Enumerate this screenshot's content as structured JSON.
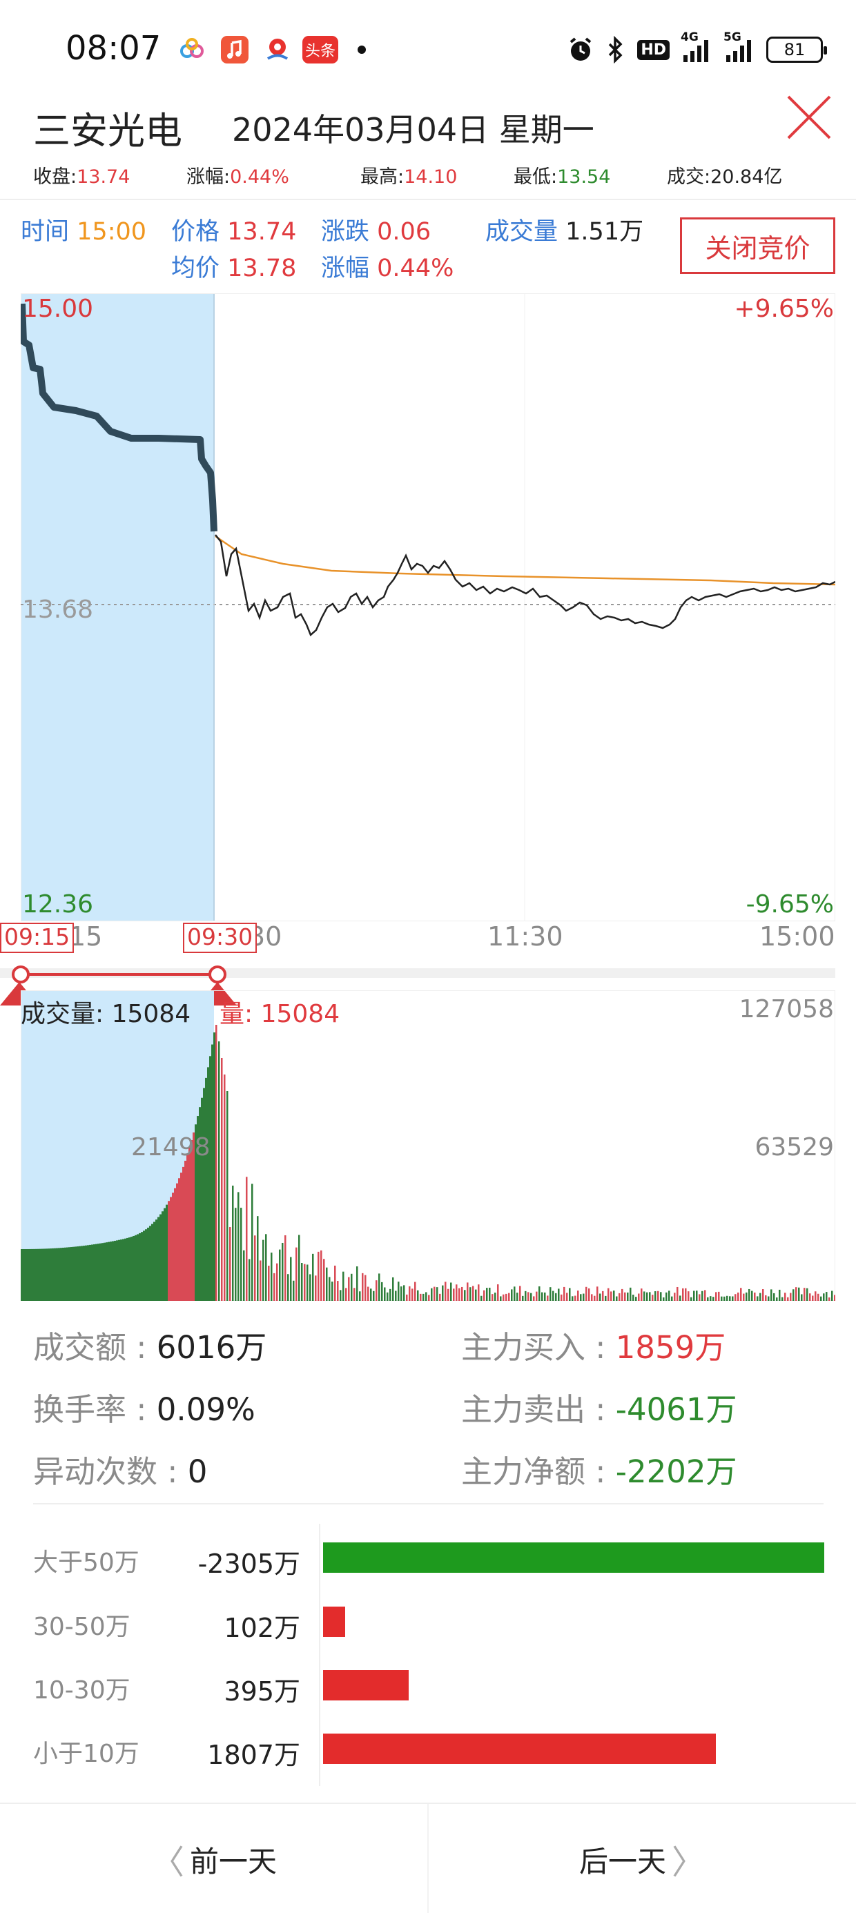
{
  "status_bar": {
    "time": "08:07",
    "app_badge_text": "头条",
    "network": "4G",
    "network2": "5G",
    "hd_label": "HD",
    "battery": "81",
    "icons": [
      "app-cloud-icon",
      "music-app-icon",
      "location-app-icon",
      "toutiao-app-icon",
      "alarm-icon",
      "bluetooth-icon",
      "hd-icon",
      "signal-4g-icon",
      "signal-5g-icon",
      "battery-icon"
    ]
  },
  "header": {
    "stock_name": "三安光电",
    "date": "2024年03月04日  星期一"
  },
  "summary": {
    "close_label": "收盘:",
    "close_value": "13.74",
    "change_label": "涨幅:",
    "change_value": "0.44%",
    "high_label": "最高:",
    "high_value": "14.10",
    "low_label": "最低:",
    "low_value": "13.54",
    "volume_label": "成交:",
    "volume_value": "20.84亿"
  },
  "info": {
    "time_label": "时间",
    "time_value": "15:00",
    "price_label": "价格",
    "price_value": "13.74",
    "avg_label": "均价",
    "avg_value": "13.78",
    "change_label": "涨跌",
    "change_value": "0.06",
    "pct_label": "涨幅",
    "pct_value": "0.44%",
    "vol_label": "成交量",
    "vol_value": "1.51万",
    "auction_button": "关闭竞价"
  },
  "price_axis": {
    "top_price": "15.00",
    "mid_price": "13.68",
    "bottom_price": "12.36",
    "top_pct": "+9.65%",
    "bottom_pct": "-9.65%"
  },
  "time_axis": {
    "ticks": [
      "15",
      "30",
      "11:30",
      "15:00"
    ],
    "start_flag": "09:15",
    "end_flag": "09:30"
  },
  "volume_axis": {
    "label_left": "成交量: 15084",
    "label_right": "量: 15084",
    "max": "127058",
    "mid": "63529",
    "auction_mid": "21498"
  },
  "stats": {
    "turnover_label": "成交额 : ",
    "turnover_value": "6016万",
    "rate_label": "换手率 : ",
    "rate_value": "0.09%",
    "anomaly_label": "异动次数 : ",
    "anomaly_value": "0",
    "main_buy_label": "主力买入 : ",
    "main_buy_value": "1859万",
    "main_sell_label": "主力卖出 : ",
    "main_sell_value": "-4061万",
    "main_net_label": "主力净额 : ",
    "main_net_value": "-2202万"
  },
  "flow": [
    {
      "label": "大于50万",
      "value": "-2305万",
      "amount": -2305,
      "color": "#1e9a1e"
    },
    {
      "label": "30-50万",
      "value": "102万",
      "amount": 102,
      "color": "#e32c2c"
    },
    {
      "label": "10-30万",
      "value": "395万",
      "amount": 395,
      "color": "#e32c2c"
    },
    {
      "label": "小于10万",
      "value": "1807万",
      "amount": 1807,
      "color": "#e32c2c"
    }
  ],
  "nav": {
    "prev": "前一天",
    "next": "后一天"
  },
  "colors": {
    "up": "#e03a3e",
    "down": "#2e8b2e",
    "avg_line": "#f0961e",
    "auction_bg": "#cde9fb",
    "label_blue": "#3a7bd5"
  }
}
